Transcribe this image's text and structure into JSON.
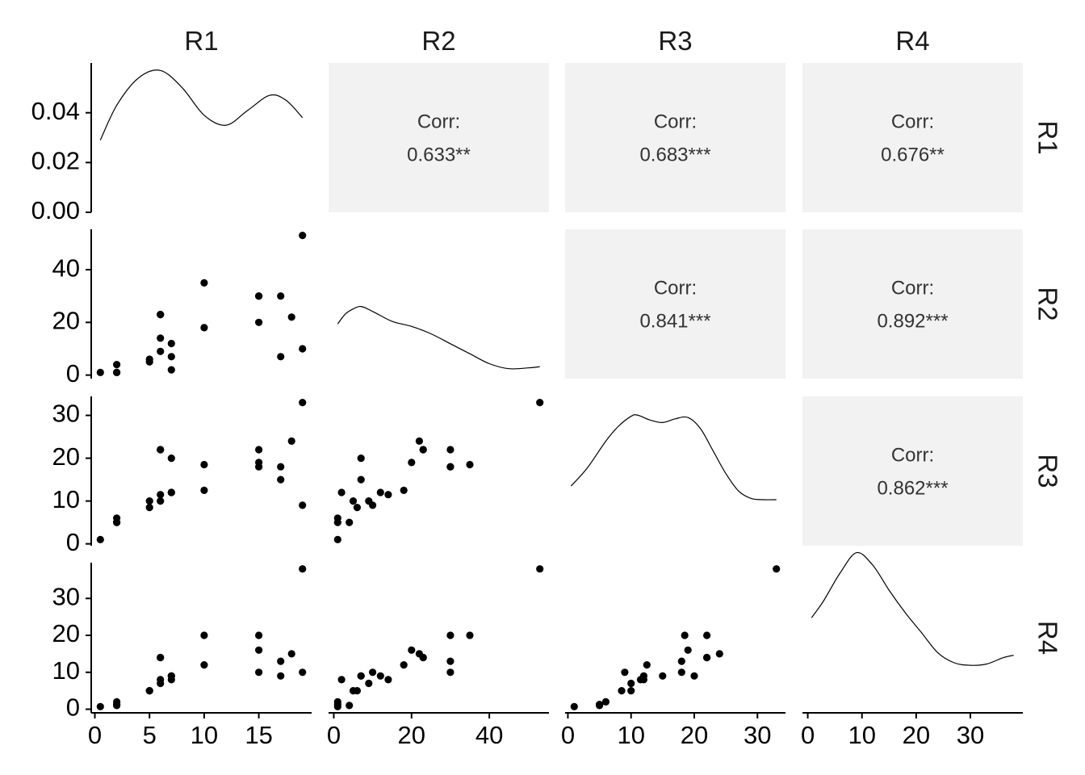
{
  "chart_data": {
    "type": "scatter-matrix",
    "variables": [
      "R1",
      "R2",
      "R3",
      "R4"
    ],
    "observations": {
      "R1": [
        0.5,
        2,
        2,
        2,
        5,
        5,
        6,
        6,
        6,
        6,
        7,
        7,
        7,
        10,
        10,
        15,
        15,
        15,
        17,
        17,
        18,
        19,
        19
      ],
      "R2": [
        1,
        1,
        1,
        4,
        5,
        6,
        9,
        14,
        23,
        23,
        2,
        7,
        12,
        18,
        35,
        20,
        30,
        30,
        7,
        30,
        22,
        10,
        53
      ],
      "R3": [
        1,
        5,
        6,
        5,
        10,
        8.5,
        10,
        11.5,
        22,
        22,
        12,
        20,
        12,
        12.5,
        18.5,
        19,
        22,
        18,
        15,
        18,
        24,
        9,
        33
      ],
      "R4": [
        0.7,
        1.3,
        2,
        1,
        5,
        5,
        7,
        8,
        14,
        14,
        8,
        9,
        9,
        12,
        20,
        16,
        20,
        10,
        9,
        13,
        15,
        10,
        38
      ]
    },
    "correlations": [
      {
        "row": "R1",
        "col": "R2",
        "label": "Corr:",
        "value": "0.633**"
      },
      {
        "row": "R1",
        "col": "R3",
        "label": "Corr:",
        "value": "0.683***"
      },
      {
        "row": "R1",
        "col": "R4",
        "label": "Corr:",
        "value": "0.676**"
      },
      {
        "row": "R2",
        "col": "R3",
        "label": "Corr:",
        "value": "0.841***"
      },
      {
        "row": "R2",
        "col": "R4",
        "label": "Corr:",
        "value": "0.892***"
      },
      {
        "row": "R3",
        "col": "R4",
        "label": "Corr:",
        "value": "0.862***"
      }
    ],
    "density_curves": {
      "R1": {
        "x": [
          0.5,
          2,
          4,
          6,
          8,
          10,
          12,
          14,
          16,
          17.5,
          19
        ],
        "y": [
          0.029,
          0.043,
          0.054,
          0.057,
          0.05,
          0.039,
          0.035,
          0.041,
          0.047,
          0.045,
          0.038
        ]
      },
      "R2": {
        "x": [
          1,
          3,
          5,
          7,
          10,
          15,
          20,
          25,
          30,
          35,
          40,
          45,
          50,
          53
        ],
        "y": [
          0.022,
          0.026,
          0.028,
          0.029,
          0.027,
          0.023,
          0.021,
          0.018,
          0.014,
          0.01,
          0.006,
          0.004,
          0.0043,
          0.0048
        ]
      },
      "R3": {
        "x": [
          0.5,
          3,
          6,
          8,
          10,
          11,
          13,
          15,
          17,
          19,
          21,
          23,
          25,
          27,
          29,
          31,
          33
        ],
        "y": [
          0.024,
          0.031,
          0.042,
          0.048,
          0.052,
          0.0525,
          0.0505,
          0.0495,
          0.051,
          0.0515,
          0.047,
          0.038,
          0.029,
          0.022,
          0.019,
          0.0185,
          0.0185
        ]
      },
      "R4": {
        "x": [
          0.7,
          3,
          6,
          9,
          12,
          15,
          18,
          21,
          24,
          27,
          30,
          33,
          36,
          38
        ],
        "y": [
          0.038,
          0.045,
          0.056,
          0.064,
          0.059,
          0.049,
          0.04,
          0.032,
          0.024,
          0.02,
          0.019,
          0.0195,
          0.022,
          0.023
        ]
      }
    },
    "diag_y_ticks": [
      0.0,
      0.02,
      0.04
    ],
    "diag_y_tick_labels": [
      "0.00",
      "0.02",
      "0.04"
    ],
    "diag_ylim": [
      0,
      0.06
    ],
    "axes": {
      "R1": {
        "ticks": [
          0,
          5,
          10,
          15
        ],
        "labels": [
          "0",
          "5",
          "10",
          "15"
        ],
        "lim": [
          0.5,
          19
        ]
      },
      "R2": {
        "ticks": [
          0,
          20,
          40
        ],
        "labels": [
          "0",
          "20",
          "40"
        ],
        "lim": [
          1,
          53
        ]
      },
      "R3": {
        "ticks": [
          0,
          10,
          20,
          30
        ],
        "labels": [
          "0",
          "10",
          "20",
          "30"
        ],
        "lim": [
          1,
          33
        ]
      },
      "R4": {
        "ticks": [
          0,
          10,
          20,
          30
        ],
        "labels": [
          "0",
          "10",
          "20",
          "30"
        ],
        "lim": [
          0.7,
          38
        ]
      }
    },
    "grid": false,
    "upper_panel_background": "#f2f2f2",
    "point_color": "#000000",
    "line_color": "#000000"
  }
}
